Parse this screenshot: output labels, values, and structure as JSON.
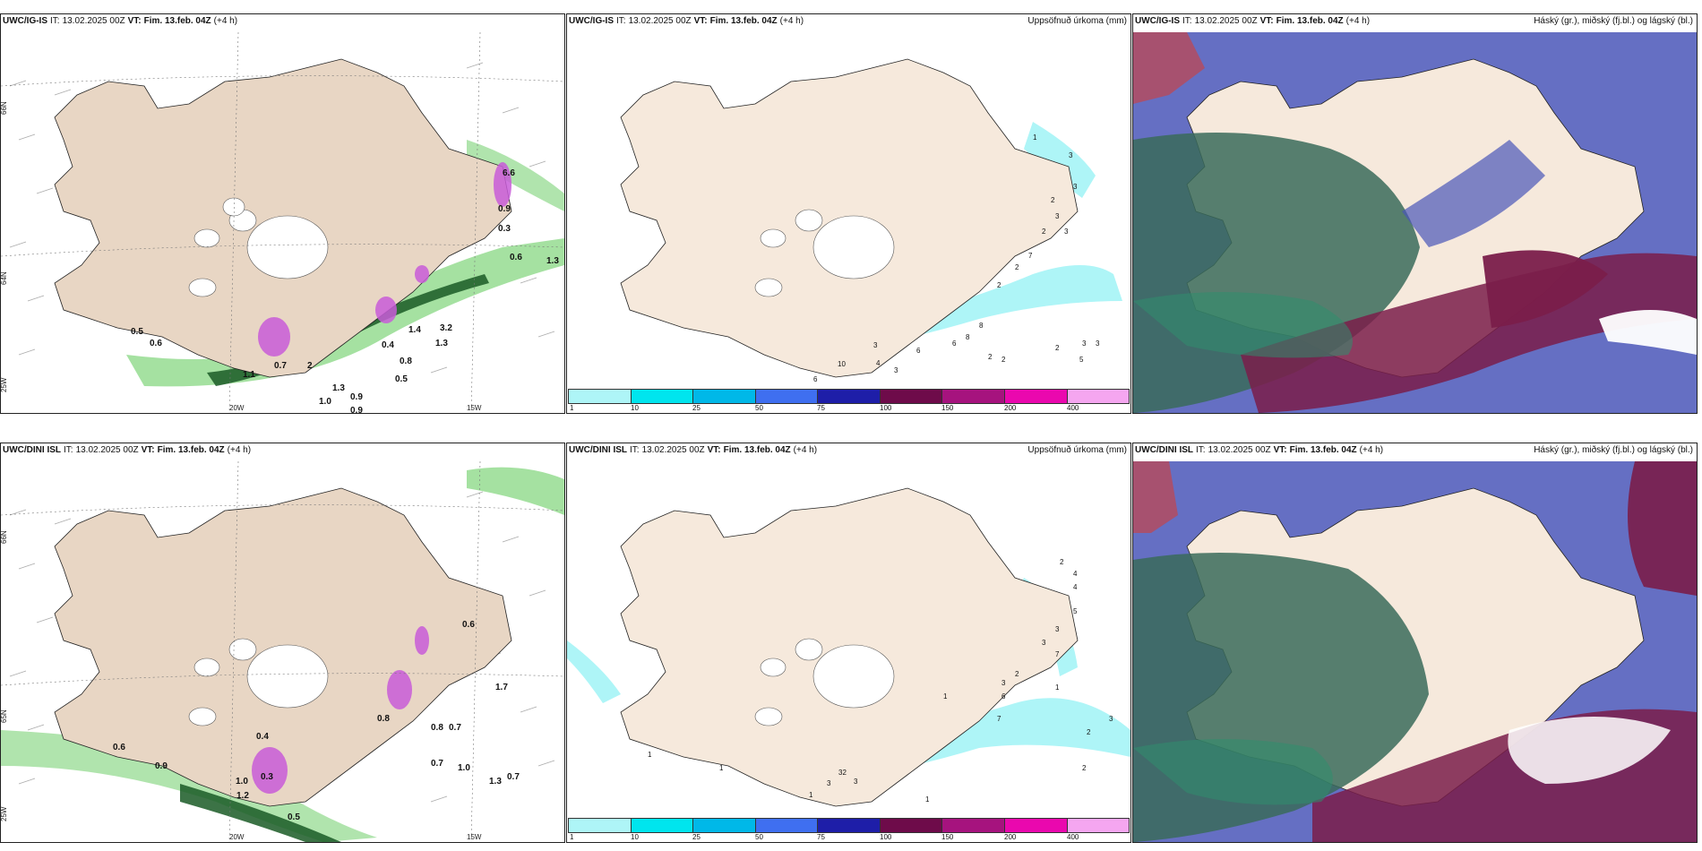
{
  "header": {
    "it_label": "IT:",
    "vt_label": "VT:",
    "init_time": "13.02.2025 00Z",
    "valid_time": "Fim. 13.feb. 04Z",
    "lead": "(+4 h)"
  },
  "models": {
    "top": "UWC/IG-IS",
    "bottom": "UWC/DINI ISL"
  },
  "panel_titles": {
    "precip": "Uppsöfnuð úrkoma (mm)",
    "clouds": "Háský (gr.), miðský (fj.bl.) og lágský (bl.)"
  },
  "map_labels": {
    "lat_66": "66N",
    "lat_64": "64N",
    "lat_65": "65N",
    "lon_20": "20W",
    "lon_15": "15W",
    "lat_25": "25W"
  },
  "precip_values_top": [
    "1",
    "3",
    "3",
    "2",
    "3",
    "3",
    "2",
    "2",
    "7",
    "2",
    "8",
    "8",
    "6",
    "2",
    "2",
    "2",
    "3",
    "3",
    "5",
    "3",
    "6",
    "6",
    "4",
    "3",
    "10"
  ],
  "precip_values_bottom": [
    "1",
    "1",
    "2",
    "4",
    "4",
    "5",
    "3",
    "3",
    "7",
    "1",
    "2",
    "3",
    "6",
    "1",
    "2",
    "3",
    "7",
    "1",
    "1",
    "2",
    "3",
    "3",
    "32"
  ],
  "wind_values_top": [
    "0.5",
    "0.6",
    "1.1",
    "0.7",
    "1.0",
    "0.9",
    "1.3",
    "0.9",
    "0.4",
    "0.8",
    "1.3",
    "0.5",
    "0.6",
    "1.3",
    "6.6",
    "0.3",
    "3.2",
    "0.9",
    "1.4",
    "2"
  ],
  "wind_values_bottom": [
    "0.6",
    "0.9",
    "1.0",
    "0.5",
    "0.7",
    "1.0",
    "1.3",
    "0.7",
    "0.8",
    "0.7",
    "0.8",
    "0.6",
    "1.7",
    "1.2",
    "0.4",
    "0.3"
  ],
  "colorbar": {
    "labels": [
      "1",
      "10",
      "25",
      "50",
      "75",
      "100",
      "150",
      "200",
      "400"
    ],
    "colors": [
      "#aef5f7",
      "#00e5ee",
      "#00b8e8",
      "#3f6ff0",
      "#1e1ea8",
      "#6e0b4a",
      "#a6137e",
      "#ea08ae",
      "#f5a6f0"
    ]
  },
  "colors": {
    "land": "#f6e9dc",
    "land_tan": "#e8d6c4",
    "precip_light": "#aef5f7",
    "green": "#8fd98a",
    "green_dark": "#1a5a26",
    "magenta": "#c85cd8",
    "high_cloud": "#3a6b5a",
    "mid_cloud": "#4a56b8",
    "low_cloud": "#7a1d4a"
  }
}
